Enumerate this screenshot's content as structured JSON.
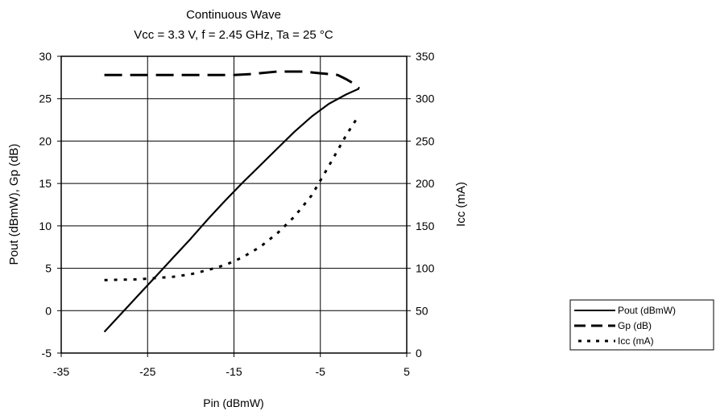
{
  "chart_data": {
    "type": "line",
    "title": "Continuous Wave",
    "subtitle": "Vcc = 3.3 V, f = 2.45 GHz, Ta = 25 °C",
    "xlabel": "Pin (dBmW)",
    "ylabel_left": "Pout (dBmW), Gp (dB)",
    "ylabel_right": "Icc (mA)",
    "xlim": [
      -35,
      5
    ],
    "ylim_left": [
      -5,
      30
    ],
    "ylim_right": [
      0,
      350
    ],
    "xticks": [
      -35,
      -25,
      -15,
      -5,
      5
    ],
    "yticks_left": [
      -5,
      0,
      5,
      10,
      15,
      20,
      25,
      30
    ],
    "yticks_right": [
      0,
      50,
      100,
      150,
      200,
      250,
      300,
      350
    ],
    "grid": true,
    "legend_position": "right",
    "series": [
      {
        "name": "Pout (dBmW)",
        "axis": "left",
        "style": "solid",
        "x": [
          -30,
          -28,
          -26,
          -24,
          -22,
          -20,
          -18,
          -16,
          -14,
          -12,
          -10,
          -8,
          -6,
          -4,
          -2,
          -0.5
        ],
        "y": [
          -2.5,
          -0.3,
          1.9,
          4.1,
          6.3,
          8.5,
          10.8,
          13.0,
          15.1,
          17.1,
          19.1,
          21.1,
          22.9,
          24.4,
          25.5,
          26.2
        ]
      },
      {
        "name": "Gp (dB)",
        "axis": "left",
        "style": "dashed",
        "x": [
          -30,
          -25,
          -20,
          -15,
          -13,
          -10,
          -7,
          -5,
          -3,
          -2,
          -1,
          -0.5
        ],
        "y": [
          27.8,
          27.8,
          27.8,
          27.8,
          27.9,
          28.2,
          28.2,
          28.0,
          27.8,
          27.3,
          26.7,
          26.2
        ]
      },
      {
        "name": "Icc (mA)",
        "axis": "right",
        "style": "dotted",
        "x": [
          -30,
          -26,
          -22,
          -20,
          -18,
          -16,
          -14,
          -12,
          -10,
          -8,
          -6,
          -4,
          -3,
          -2,
          -1,
          -0.5
        ],
        "y": [
          86,
          87,
          90,
          93,
          98,
          104,
          113,
          125,
          141,
          161,
          186,
          221,
          239,
          257,
          273,
          280
        ]
      }
    ]
  }
}
